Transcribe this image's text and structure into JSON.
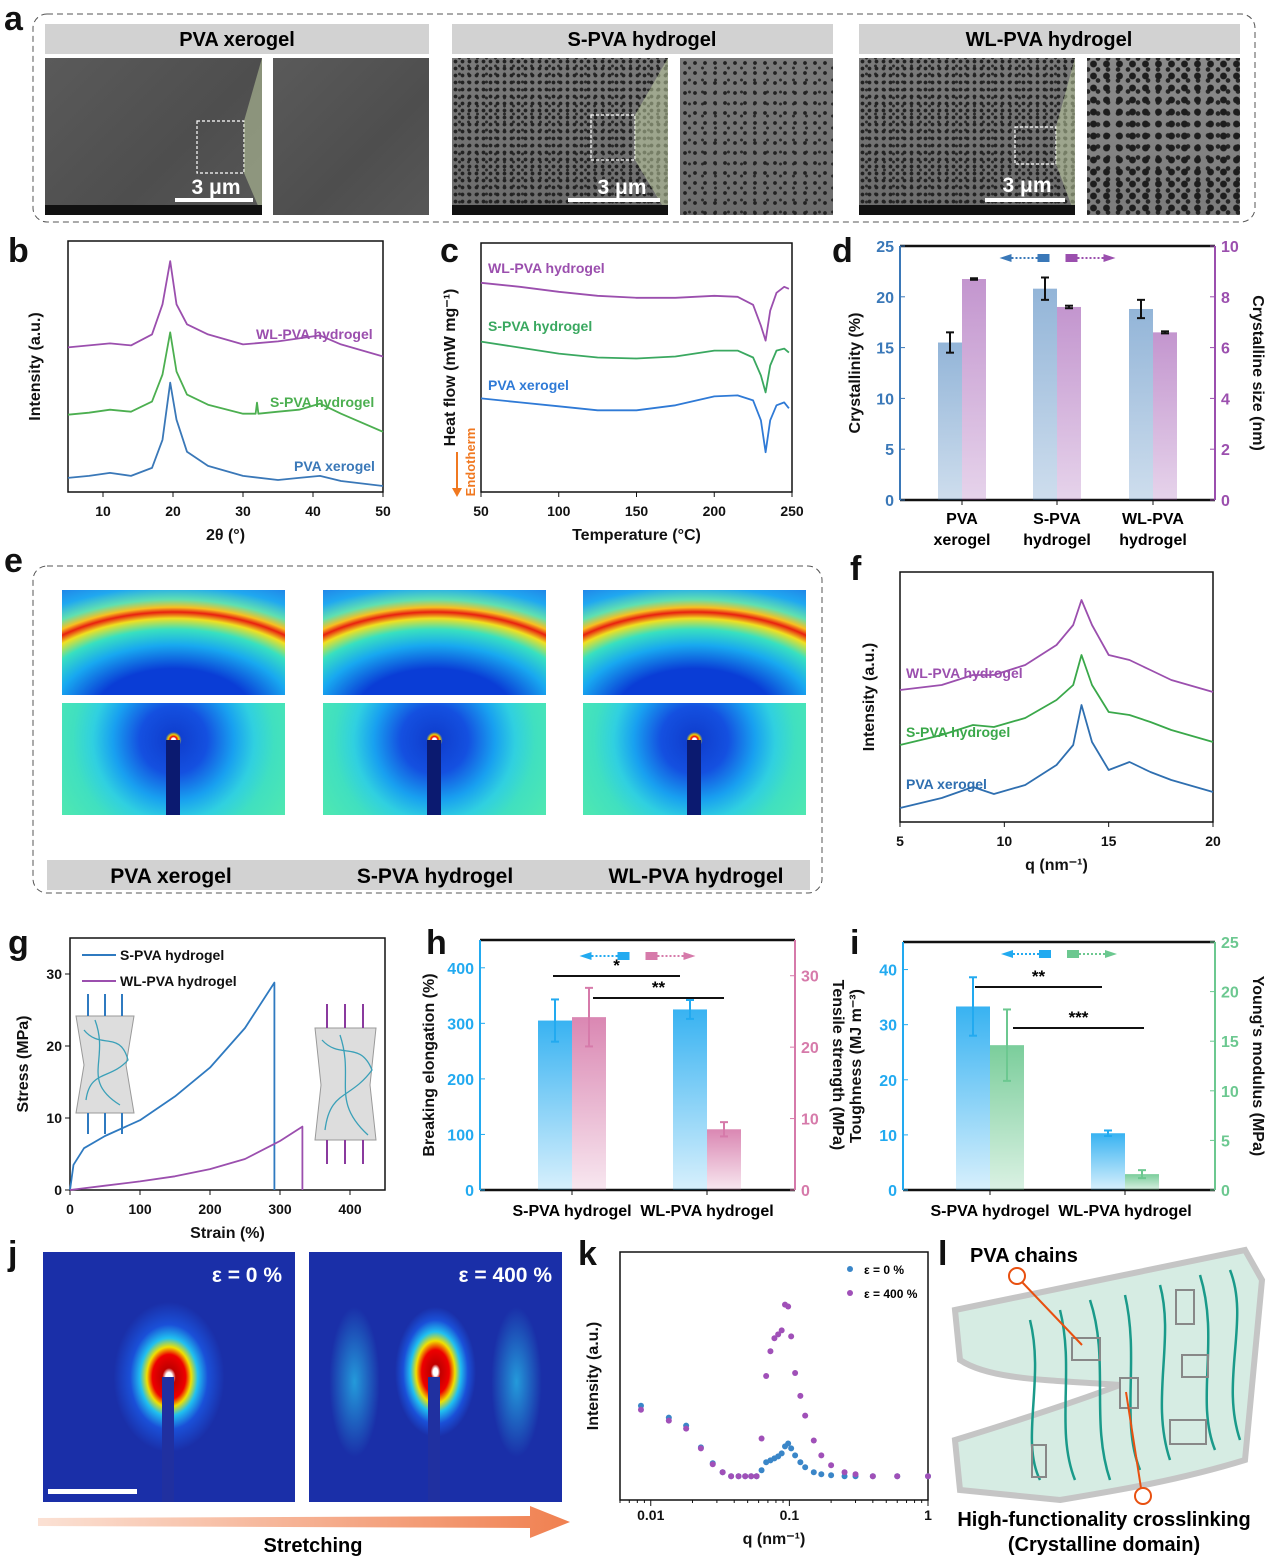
{
  "panel_letters": [
    "a",
    "b",
    "c",
    "d",
    "e",
    "f",
    "g",
    "h",
    "i",
    "j",
    "k",
    "l"
  ],
  "panel_a": {
    "titles": [
      "PVA xerogel",
      "S-PVA hydrogel",
      "WL-PVA hydrogel"
    ],
    "scale_bar": "3 μm"
  },
  "panel_c_extra": {
    "endotherm": "Endotherm",
    "endotherm_arrow_color": "#f07820"
  },
  "panel_e": {
    "titles": [
      "PVA xerogel",
      "S-PVA hydrogel",
      "WL-PVA hydrogel"
    ]
  },
  "panel_j": {
    "labels": [
      "ε = 0 %",
      "ε = 400 %"
    ],
    "arrow_label": "Stretching",
    "arrow_color": "#f08050"
  },
  "panel_l": {
    "chains_label": "PVA chains",
    "crosslink_label": "High-functionality crosslinking",
    "crosslink_sub": "(Crystalline domain)",
    "callout_color": "#e85010"
  },
  "chart_data": [
    {
      "panel": "b",
      "type": "line",
      "xlabel": "2θ (°)",
      "ylabel": "Intensity (a.u.)",
      "xlim": [
        5,
        50
      ],
      "xticks": [
        10,
        20,
        30,
        40,
        50
      ],
      "ylim": [
        0,
        100
      ],
      "series": [
        {
          "name": "PVA xerogel",
          "color": "#3a78b8",
          "x": [
            5,
            8,
            11,
            14,
            17,
            18.5,
            19.6,
            20.5,
            22,
            25,
            30,
            35,
            38,
            41,
            44,
            50
          ],
          "y": [
            5.6,
            6.4,
            7.6,
            6.4,
            9.6,
            20.8,
            43.6,
            28.8,
            16,
            10.4,
            6.4,
            4.8,
            5.6,
            6.4,
            4.4,
            2.4
          ]
        },
        {
          "name": "S-PVA hydrogel",
          "color": "#4caf50",
          "x": [
            5,
            8,
            11,
            14,
            17,
            18.5,
            19.6,
            20.5,
            22,
            25,
            30,
            31.8,
            32,
            32.2,
            35,
            38,
            41,
            44,
            50
          ],
          "y": [
            30.8,
            31.6,
            32.8,
            32,
            36,
            46.8,
            63.6,
            48,
            38.8,
            34.8,
            31.2,
            31.2,
            35.6,
            31.2,
            32,
            32.8,
            35.2,
            31.2,
            24
          ]
        },
        {
          "name": "WL-PVA hydrogel",
          "color": "#9b4fae",
          "x": [
            5,
            8,
            11,
            14,
            17,
            18.5,
            19.6,
            20.5,
            22,
            25,
            30,
            35,
            41,
            44,
            50
          ],
          "y": [
            57.6,
            58.4,
            59.2,
            58.4,
            62.8,
            74.8,
            92,
            74.8,
            66.8,
            62.8,
            58.8,
            60,
            62.4,
            58.8,
            54
          ]
        }
      ]
    },
    {
      "panel": "c",
      "type": "line",
      "xlabel": "Temperature (°C)",
      "ylabel": "Heat flow (mW mg⁻¹)",
      "xlim": [
        50,
        250
      ],
      "xticks": [
        50,
        100,
        150,
        200,
        250
      ],
      "ylim": [
        0,
        100
      ],
      "series": [
        {
          "name": "PVA xerogel",
          "color": "#2f7ad6",
          "x": [
            50,
            75,
            100,
            125,
            150,
            175,
            200,
            215,
            225,
            230,
            233,
            236,
            240,
            245,
            248
          ],
          "y": [
            37.6,
            36,
            34.4,
            32.8,
            32.8,
            34.8,
            38.4,
            38.8,
            36.8,
            28.8,
            16,
            28.8,
            34.8,
            36,
            33.6
          ]
        },
        {
          "name": "S-PVA hydrogel",
          "color": "#3aa860",
          "x": [
            50,
            75,
            100,
            125,
            150,
            175,
            200,
            215,
            225,
            230,
            233,
            236,
            240,
            245,
            248
          ],
          "y": [
            60.4,
            58,
            55.6,
            54,
            53.6,
            54.4,
            56.8,
            56.8,
            54,
            46.8,
            40,
            50.8,
            56.8,
            57.6,
            56
          ]
        },
        {
          "name": "WL-PVA hydrogel",
          "color": "#9b4fae",
          "x": [
            50,
            75,
            100,
            125,
            150,
            175,
            200,
            215,
            225,
            230,
            233,
            236,
            240,
            245,
            248
          ],
          "y": [
            84,
            82.4,
            80.4,
            78.8,
            78,
            78,
            78.8,
            78.4,
            75.2,
            66.8,
            60.8,
            72.8,
            80,
            82.4,
            81.6
          ]
        }
      ]
    },
    {
      "panel": "d",
      "type": "bar",
      "categories": [
        "PVA xerogel",
        "S-PVA hydrogel",
        "WL-PVA hydrogel"
      ],
      "ylabel": "Crystallinity (%)",
      "ylim": [
        0,
        25
      ],
      "yticks": [
        0,
        5,
        10,
        15,
        20,
        25
      ],
      "y2label": "Crystalline size (nm)",
      "y2lim": [
        0,
        10
      ],
      "y2ticks": [
        0,
        2,
        4,
        6,
        8,
        10
      ],
      "series": [
        {
          "axis": "left",
          "color": "#3a78b8",
          "values": [
            15.5,
            20.8,
            18.8
          ],
          "errors": [
            1.0,
            1.1,
            0.9
          ]
        },
        {
          "axis": "right",
          "color": "#9b4fae",
          "values": [
            8.7,
            7.6,
            6.6
          ],
          "errors": [
            0.03,
            0.05,
            0.04
          ]
        }
      ]
    },
    {
      "panel": "f",
      "type": "line",
      "xlabel": "q (nm⁻¹)",
      "ylabel": "Intensity (a.u.)",
      "xlim": [
        5,
        20
      ],
      "xticks": [
        5,
        10,
        15,
        20
      ],
      "ylim": [
        0,
        100
      ],
      "series": [
        {
          "name": "PVA xerogel",
          "color": "#2f6fb0",
          "x": [
            5,
            7,
            8.5,
            9.5,
            11,
            12.5,
            13.3,
            13.7,
            14.2,
            15,
            16,
            17,
            18,
            20
          ],
          "y": [
            5.6,
            9.6,
            14,
            11.2,
            14.8,
            22.8,
            30.8,
            46.8,
            32,
            20.8,
            24,
            20,
            16.8,
            12
          ]
        },
        {
          "name": "S-PVA hydrogel",
          "color": "#3aa84a",
          "x": [
            5,
            7,
            8.5,
            9.5,
            11,
            12.5,
            13.3,
            13.7,
            14.2,
            15,
            16,
            17,
            18,
            20
          ],
          "y": [
            30.8,
            34.8,
            38.8,
            38,
            41.6,
            48.8,
            54.8,
            66.8,
            54.8,
            44,
            42.8,
            40,
            36.8,
            32
          ]
        },
        {
          "name": "WL-PVA hydrogel",
          "color": "#9b4fae",
          "x": [
            5,
            7,
            8.5,
            9.5,
            11,
            12.5,
            13.3,
            13.7,
            14.2,
            15,
            16,
            17,
            18,
            20
          ],
          "y": [
            52.8,
            54.8,
            58.8,
            58.8,
            62.8,
            70.8,
            78.8,
            88.8,
            78.8,
            66.8,
            64.8,
            60.8,
            56.8,
            52
          ]
        }
      ]
    },
    {
      "panel": "g",
      "type": "line",
      "xlabel": "Strain (%)",
      "ylabel": "Stress (MPa)",
      "xlim": [
        0,
        450
      ],
      "xticks": [
        0,
        100,
        200,
        300,
        400
      ],
      "ylim": [
        0,
        35
      ],
      "yticks": [
        0,
        10,
        20,
        30
      ],
      "legend": "top-left",
      "series": [
        {
          "name": "S-PVA hydrogel",
          "color": "#2f7ac0",
          "x": [
            0,
            5,
            20,
            50,
            100,
            150,
            200,
            250,
            292,
            292
          ],
          "y": [
            0,
            3.5,
            5.8,
            7.5,
            9.7,
            13,
            17,
            22.5,
            28.8,
            0
          ]
        },
        {
          "name": "WL-PVA hydrogel",
          "color": "#9b4fae",
          "x": [
            0,
            50,
            100,
            150,
            200,
            250,
            300,
            332,
            332
          ],
          "y": [
            0,
            0.6,
            1.2,
            1.9,
            2.9,
            4.3,
            6.8,
            8.8,
            0
          ]
        }
      ]
    },
    {
      "panel": "h",
      "type": "bar",
      "categories": [
        "S-PVA hydrogel",
        "WL-PVA hydrogel"
      ],
      "ylabel": "Breaking elongation (%)",
      "ylim": [
        0,
        450
      ],
      "yticks": [
        0,
        100,
        200,
        300,
        400
      ],
      "y2label": "Tensile strength (MPa)",
      "y2lim": [
        0,
        35
      ],
      "y2ticks": [
        0,
        10,
        20,
        30
      ],
      "series": [
        {
          "axis": "left",
          "color": "#22aaf0",
          "values": [
            305,
            325
          ],
          "errors": [
            38,
            17
          ]
        },
        {
          "axis": "right",
          "color": "#d67aaa",
          "values": [
            24.2,
            8.5
          ],
          "errors": [
            4.1,
            1.0
          ]
        }
      ],
      "significance": [
        {
          "label": "*",
          "series": "left"
        },
        {
          "label": "**",
          "series": "right"
        }
      ]
    },
    {
      "panel": "i",
      "type": "bar",
      "categories": [
        "S-PVA hydrogel",
        "WL-PVA hydrogel"
      ],
      "ylabel": "Toughness (MJ m⁻³)",
      "ylim": [
        0,
        45
      ],
      "yticks": [
        0,
        10,
        20,
        30,
        40
      ],
      "y2label": "Young's modulus (MPa)",
      "y2lim": [
        0,
        25
      ],
      "y2ticks": [
        0,
        5,
        10,
        15,
        20,
        25
      ],
      "series": [
        {
          "axis": "left",
          "color": "#22aaf0",
          "values": [
            33.3,
            10.3
          ],
          "errors": [
            5.3,
            0.5
          ]
        },
        {
          "axis": "right",
          "color": "#6cc890",
          "values": [
            14.6,
            1.6
          ],
          "errors": [
            3.6,
            0.4
          ]
        }
      ],
      "significance": [
        {
          "label": "**",
          "series": "left"
        },
        {
          "label": "***",
          "series": "right"
        }
      ]
    },
    {
      "panel": "k",
      "type": "scatter",
      "xlabel": "q (nm⁻¹)",
      "ylabel": "Intensity (a.u.)",
      "xscale": "log",
      "xlim": [
        0.006,
        1
      ],
      "xticks": [
        0.01,
        0.1,
        1
      ],
      "ylim": [
        0,
        100
      ],
      "legend": "top-right",
      "x": [
        0.0085,
        0.0135,
        0.018,
        0.023,
        0.028,
        0.033,
        0.038,
        0.043,
        0.048,
        0.053,
        0.058,
        0.063,
        0.068,
        0.073,
        0.078,
        0.083,
        0.088,
        0.093,
        0.098,
        0.103,
        0.11,
        0.12,
        0.13,
        0.15,
        0.17,
        0.2,
        0.25,
        0.3,
        0.4,
        0.6,
        1
      ],
      "series": [
        {
          "name": "ε = 0 %",
          "color": "#3a86c8",
          "y": [
            38,
            33.2,
            30,
            21.2,
            14.8,
            11.2,
            9.6,
            9.6,
            9.6,
            9.6,
            9.6,
            12,
            15.2,
            16,
            16.8,
            17.6,
            18.8,
            21.6,
            22.8,
            20.8,
            18,
            15.2,
            13.2,
            11.2,
            10.4,
            10,
            9.6,
            9.6,
            9.6,
            9.6,
            9.6
          ]
        },
        {
          "name": "ε = 400 %",
          "color": "#a050b8",
          "y": [
            36.4,
            32,
            28.8,
            20.8,
            14.4,
            11.2,
            9.6,
            9.6,
            9.6,
            9.6,
            9.6,
            24.8,
            50,
            60,
            65.2,
            66.8,
            68.4,
            78.8,
            78,
            66,
            51.2,
            42,
            34,
            24,
            18,
            14,
            11.2,
            10.4,
            9.6,
            9.6,
            9.6
          ]
        }
      ]
    }
  ]
}
